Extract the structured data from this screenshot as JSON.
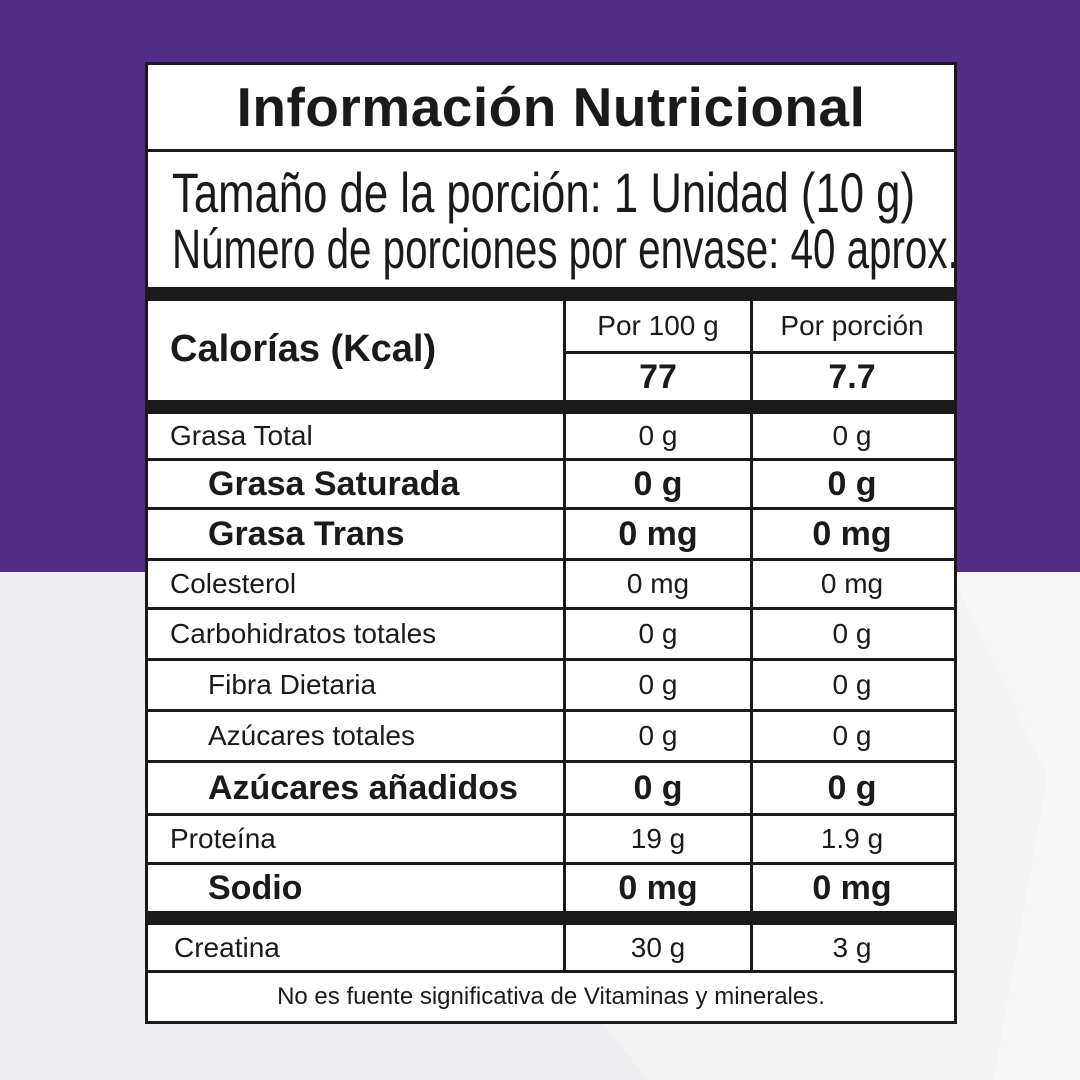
{
  "title": "Información Nutricional",
  "serving_size": "Tamaño de la porción: 1 Unidad (10 g)",
  "servings_per_container": "Número de porciones por envase: 40 aprox.",
  "calories": {
    "label": "Calorías (Kcal)",
    "col_100g": "Por 100 g",
    "col_portion": "Por porción",
    "value_100g": "77",
    "value_portion": "7.7"
  },
  "nutrients": [
    {
      "name": "Grasa Total",
      "per100": "0 g",
      "portion": "0 g"
    },
    {
      "name": "Grasa Saturada",
      "per100": "0 g",
      "portion": "0 g"
    },
    {
      "name": "Grasa Trans",
      "per100": "0 mg",
      "portion": "0 mg"
    },
    {
      "name": "Colesterol",
      "per100": "0 mg",
      "portion": "0 mg"
    },
    {
      "name": "Carbohidratos totales",
      "per100": "0 g",
      "portion": "0 g"
    },
    {
      "name": "Fibra Dietaria",
      "per100": "0 g",
      "portion": "0 g"
    },
    {
      "name": "Azúcares totales",
      "per100": "0 g",
      "portion": "0 g"
    },
    {
      "name": "Azúcares añadidos",
      "per100": "0 g",
      "portion": "0 g"
    },
    {
      "name": "Proteína",
      "per100": "19 g",
      "portion": "1.9 g"
    },
    {
      "name": "Sodio",
      "per100": "0 mg",
      "portion": "0 mg"
    }
  ],
  "creatine": {
    "name": "Creatina",
    "per100": "30 g",
    "portion": "3 g"
  },
  "footnote": "No es fuente significativa de Vitaminas y minerales.",
  "colors": {
    "background_purple": "#532c85",
    "background_light": "#f2f2f3",
    "label_border": "#1a1a1a"
  }
}
